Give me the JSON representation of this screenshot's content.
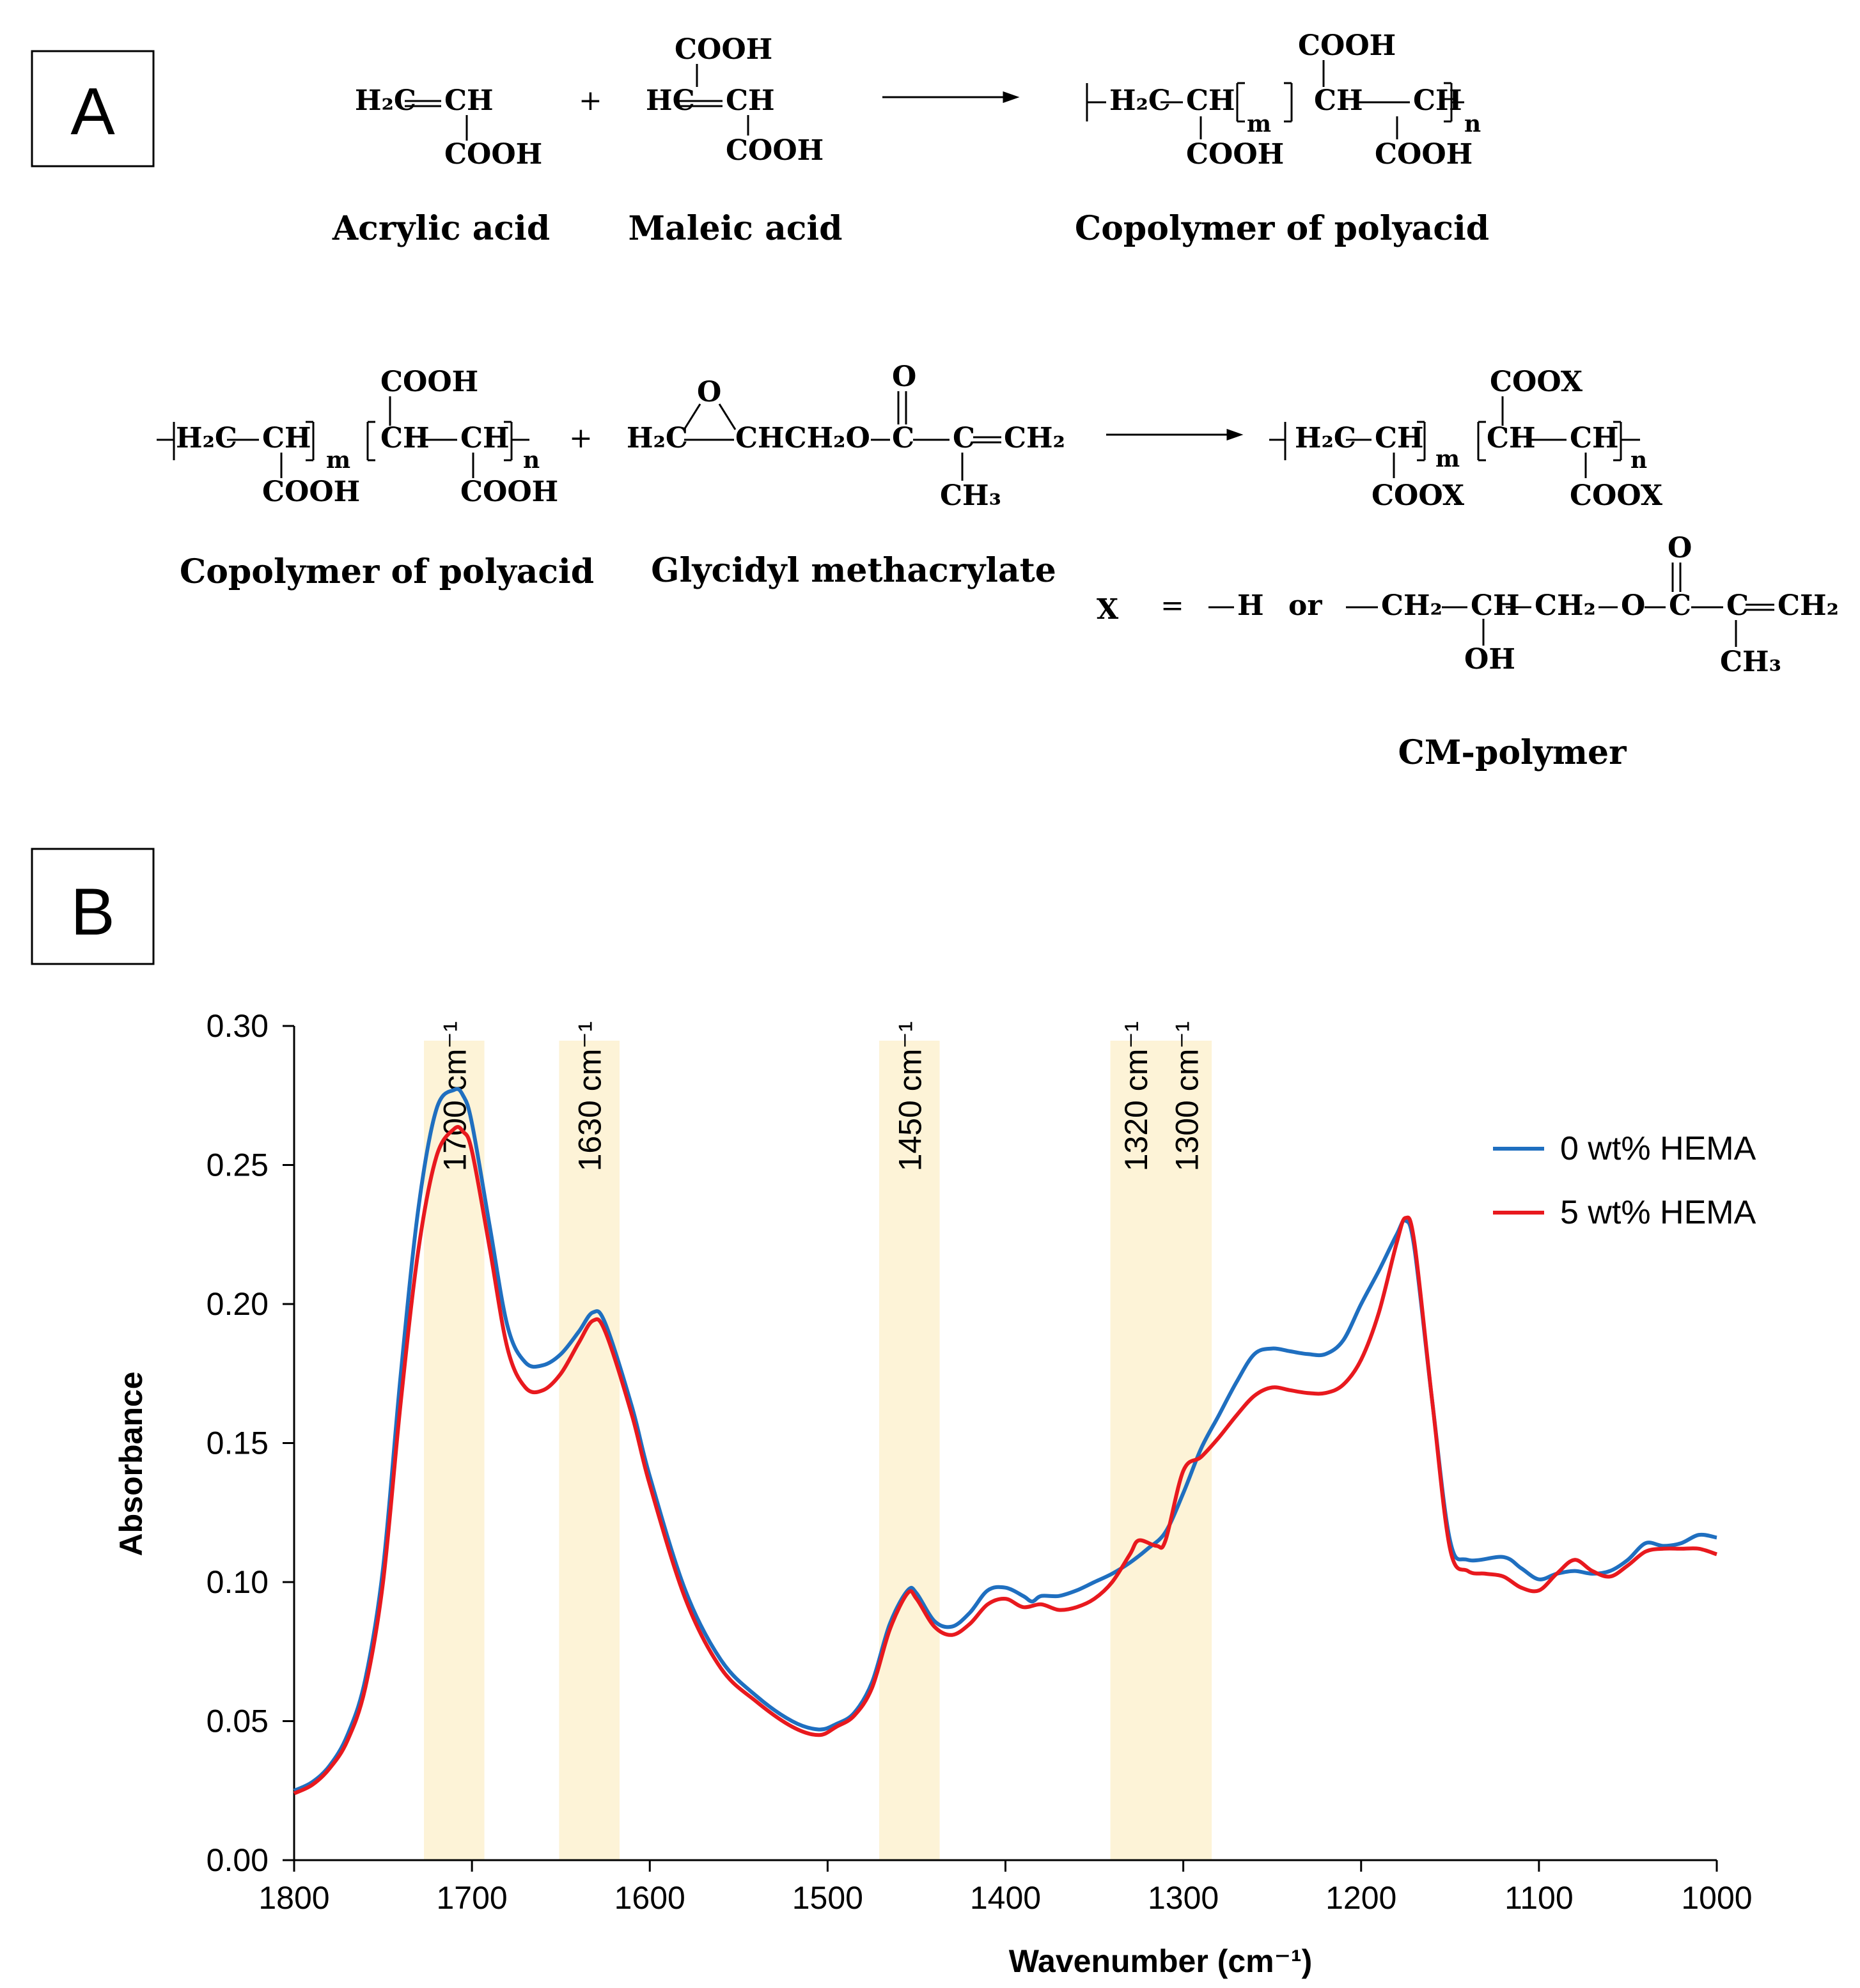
{
  "panel_a": {
    "label": "A",
    "row1": {
      "acrylic": {
        "h2c": "H₂C",
        "ch": "CH",
        "cooh": "COOH",
        "name": "Acrylic acid"
      },
      "plus": "+",
      "maleic": {
        "cooh_top": "COOH",
        "hc": "HC",
        "ch": "CH",
        "cooh_bottom": "COOH",
        "name": "Maleic acid"
      },
      "copolymer": {
        "h2c": "H₂C",
        "ch1": "CH",
        "m": "m",
        "ch2": "CH",
        "ch3": "CH",
        "n": "n",
        "cooh_top": "COOH",
        "cooh_left": "COOH",
        "cooh_right": "COOH",
        "name": "Copolymer of polyacid"
      }
    },
    "row2": {
      "copolymer": {
        "h2c": "H₂C",
        "ch1": "CH",
        "m": "m",
        "ch2": "CH",
        "ch3": "CH",
        "n": "n",
        "cooh_top": "COOH",
        "cooh_left": "COOH",
        "cooh_right": "COOH",
        "name": "Copolymer of polyacid"
      },
      "plus": "+",
      "gma": {
        "o_ring": "O",
        "h2c": "H₂C",
        "chain": "CHCH₂O",
        "c1": "C",
        "o_top": "O",
        "c2": "C",
        "ch2": "CH₂",
        "ch3": "CH₃",
        "name": "Glycidyl methacrylate"
      },
      "product": {
        "h2c": "H₂C",
        "ch1": "CH",
        "m": "m",
        "ch2": "CH",
        "ch3": "CH",
        "n": "n",
        "coox_top": "COOX",
        "coox_left": "COOX",
        "coox_right": "COOX"
      },
      "x_def": {
        "x": "X",
        "eq": "=",
        "h": "H",
        "or": "or",
        "ch2a": "CH₂",
        "ch": "CH",
        "oh": "OH",
        "ch2b": "CH₂",
        "o": "O",
        "c1": "C",
        "o_top": "O",
        "c2": "C",
        "ch2c": "CH₂",
        "ch3": "CH₃"
      },
      "name": "CM-polymer"
    }
  },
  "panel_b": {
    "label": "B"
  },
  "chart_data": {
    "type": "line",
    "title": "",
    "xlabel": "Wavenumber (cm⁻¹)",
    "ylabel": "Absorbance",
    "xlim": [
      1800,
      1000
    ],
    "ylim": [
      0,
      0.3
    ],
    "x_reversed": true,
    "grid": false,
    "legend_position": "top-right",
    "x_ticks": [
      1800,
      1700,
      1600,
      1500,
      1400,
      1300,
      1200,
      1100,
      1000
    ],
    "y_ticks": [
      "0.00",
      "0.05",
      "0.10",
      "0.15",
      "0.20",
      "0.25",
      "0.30"
    ],
    "bands": [
      {
        "from": 1727,
        "to": 1693,
        "label": "1700 cm⁻¹",
        "labels": [
          "1700 cm⁻¹"
        ]
      },
      {
        "from": 1651,
        "to": 1617,
        "label": "1630 cm⁻¹",
        "labels": [
          "1630 cm⁻¹"
        ]
      },
      {
        "from": 1471,
        "to": 1437,
        "label": "1450 cm⁻¹",
        "labels": [
          "1450 cm⁻¹"
        ]
      },
      {
        "from": 1341,
        "to": 1284,
        "label": "1320 cm⁻¹ / 1300 cm⁻¹",
        "labels": [
          "1320 cm⁻¹",
          "1300 cm⁻¹"
        ]
      }
    ],
    "series": [
      {
        "name": "0 wt% HEMA",
        "color": "#1f6fc0",
        "x": [
          1800,
          1790,
          1780,
          1770,
          1760,
          1750,
          1740,
          1730,
          1720,
          1710,
          1705,
          1700,
          1690,
          1680,
          1670,
          1660,
          1650,
          1640,
          1632,
          1625,
          1610,
          1600,
          1580,
          1560,
          1540,
          1520,
          1505,
          1495,
          1485,
          1475,
          1465,
          1455,
          1450,
          1440,
          1430,
          1420,
          1410,
          1400,
          1390,
          1385,
          1380,
          1370,
          1360,
          1350,
          1340,
          1330,
          1320,
          1310,
          1300,
          1290,
          1280,
          1270,
          1260,
          1250,
          1240,
          1230,
          1220,
          1210,
          1200,
          1190,
          1180,
          1175,
          1170,
          1160,
          1150,
          1140,
          1120,
          1110,
          1100,
          1090,
          1080,
          1070,
          1060,
          1050,
          1040,
          1030,
          1020,
          1010,
          1000
        ],
        "values": [
          0.025,
          0.028,
          0.034,
          0.045,
          0.065,
          0.105,
          0.175,
          0.235,
          0.27,
          0.277,
          0.275,
          0.265,
          0.228,
          0.192,
          0.179,
          0.178,
          0.182,
          0.19,
          0.197,
          0.193,
          0.163,
          0.138,
          0.097,
          0.072,
          0.059,
          0.05,
          0.047,
          0.049,
          0.053,
          0.064,
          0.085,
          0.097,
          0.096,
          0.086,
          0.084,
          0.089,
          0.097,
          0.098,
          0.095,
          0.093,
          0.095,
          0.095,
          0.097,
          0.1,
          0.103,
          0.107,
          0.112,
          0.118,
          0.132,
          0.148,
          0.16,
          0.172,
          0.182,
          0.184,
          0.183,
          0.182,
          0.182,
          0.187,
          0.2,
          0.212,
          0.225,
          0.23,
          0.22,
          0.165,
          0.115,
          0.108,
          0.109,
          0.105,
          0.101,
          0.103,
          0.104,
          0.103,
          0.104,
          0.108,
          0.114,
          0.113,
          0.114,
          0.117,
          0.116
        ]
      },
      {
        "name": "5 wt% HEMA",
        "color": "#e8191e",
        "x": [
          1800,
          1790,
          1780,
          1770,
          1760,
          1750,
          1740,
          1730,
          1720,
          1710,
          1705,
          1700,
          1690,
          1680,
          1670,
          1660,
          1650,
          1640,
          1632,
          1625,
          1610,
          1600,
          1580,
          1560,
          1540,
          1520,
          1505,
          1495,
          1485,
          1475,
          1465,
          1455,
          1450,
          1440,
          1430,
          1420,
          1410,
          1400,
          1390,
          1380,
          1370,
          1360,
          1350,
          1340,
          1330,
          1325,
          1315,
          1310,
          1300,
          1290,
          1280,
          1270,
          1260,
          1250,
          1240,
          1230,
          1220,
          1210,
          1200,
          1190,
          1180,
          1175,
          1170,
          1160,
          1150,
          1140,
          1130,
          1120,
          1110,
          1100,
          1090,
          1080,
          1070,
          1060,
          1050,
          1040,
          1030,
          1020,
          1010,
          1000
        ],
        "values": [
          0.024,
          0.027,
          0.033,
          0.043,
          0.062,
          0.1,
          0.165,
          0.22,
          0.253,
          0.263,
          0.262,
          0.255,
          0.22,
          0.184,
          0.17,
          0.169,
          0.175,
          0.186,
          0.194,
          0.19,
          0.16,
          0.135,
          0.094,
          0.069,
          0.057,
          0.048,
          0.045,
          0.048,
          0.052,
          0.062,
          0.083,
          0.096,
          0.094,
          0.084,
          0.081,
          0.085,
          0.092,
          0.094,
          0.091,
          0.092,
          0.09,
          0.091,
          0.094,
          0.1,
          0.11,
          0.115,
          0.113,
          0.115,
          0.14,
          0.145,
          0.152,
          0.16,
          0.167,
          0.17,
          0.169,
          0.168,
          0.168,
          0.171,
          0.18,
          0.197,
          0.222,
          0.231,
          0.222,
          0.165,
          0.112,
          0.104,
          0.103,
          0.102,
          0.098,
          0.097,
          0.103,
          0.108,
          0.104,
          0.102,
          0.106,
          0.111,
          0.112,
          0.112,
          0.112,
          0.11
        ]
      }
    ]
  }
}
